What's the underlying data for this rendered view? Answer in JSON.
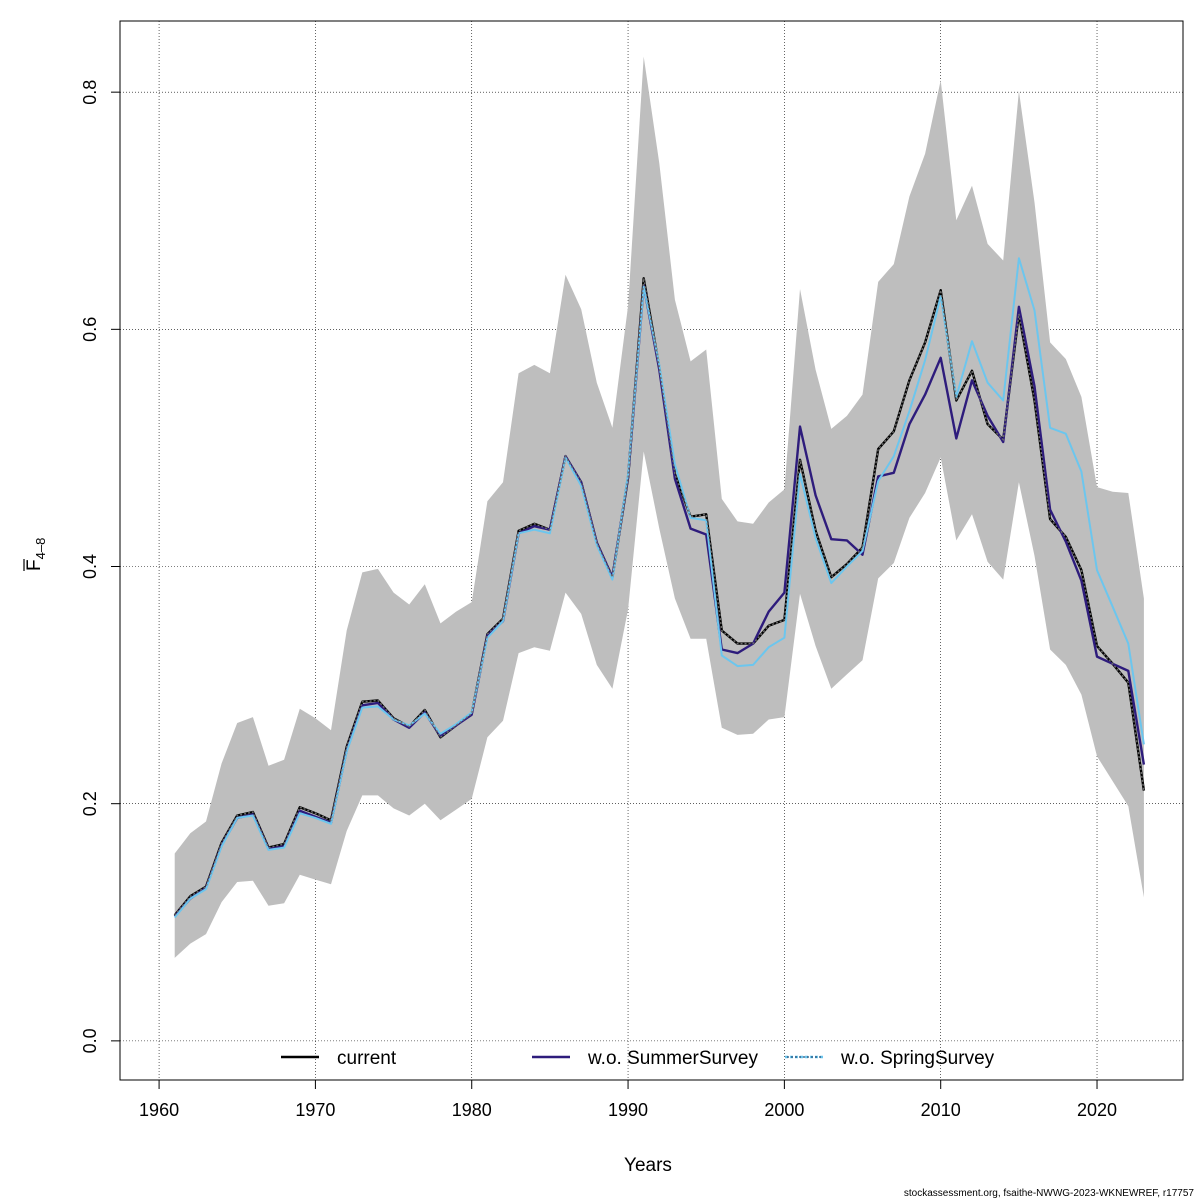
{
  "chart_data": {
    "type": "line",
    "title": "",
    "xlabel": "Years",
    "ylabel": "F",
    "ylabel_sub": "4–8",
    "xlim": [
      1957.5,
      2025.5
    ],
    "ylim": [
      -0.033,
      0.86
    ],
    "x_ticks": [
      1960,
      1970,
      1980,
      1990,
      2000,
      2010,
      2020
    ],
    "y_ticks": [
      0.0,
      0.2,
      0.4,
      0.6,
      0.8
    ],
    "y_tick_labels": [
      "0.0",
      "0.2",
      "0.4",
      "0.6",
      "0.8"
    ],
    "grid": true,
    "legend_position": "bottom",
    "x": [
      1961,
      1962,
      1963,
      1964,
      1965,
      1966,
      1967,
      1968,
      1969,
      1970,
      1971,
      1972,
      1973,
      1974,
      1975,
      1976,
      1977,
      1978,
      1979,
      1980,
      1981,
      1982,
      1983,
      1984,
      1985,
      1986,
      1987,
      1988,
      1989,
      1990,
      1991,
      1992,
      1993,
      1994,
      1995,
      1996,
      1997,
      1998,
      1999,
      2000,
      2001,
      2002,
      2003,
      2004,
      2005,
      2006,
      2007,
      2008,
      2009,
      2010,
      2011,
      2012,
      2013,
      2014,
      2015,
      2016,
      2017,
      2018,
      2019,
      2020,
      2021,
      2022,
      2023
    ],
    "band": {
      "color": "#bebebe",
      "upper": [
        0.158,
        0.175,
        0.185,
        0.234,
        0.268,
        0.273,
        0.232,
        0.237,
        0.28,
        0.272,
        0.262,
        0.346,
        0.395,
        0.398,
        0.378,
        0.368,
        0.385,
        0.352,
        0.362,
        0.37,
        0.455,
        0.471,
        0.563,
        0.57,
        0.563,
        0.646,
        0.617,
        0.555,
        0.517,
        0.62,
        0.83,
        0.74,
        0.625,
        0.573,
        0.583,
        0.457,
        0.438,
        0.436,
        0.454,
        0.465,
        0.634,
        0.566,
        0.516,
        0.527,
        0.545,
        0.64,
        0.655,
        0.712,
        0.748,
        0.81,
        0.692,
        0.721,
        0.672,
        0.658,
        0.801,
        0.707,
        0.589,
        0.575,
        0.543,
        0.467,
        0.463,
        0.462,
        0.373
      ],
      "lower": [
        0.07,
        0.082,
        0.09,
        0.117,
        0.134,
        0.135,
        0.114,
        0.116,
        0.14,
        0.136,
        0.132,
        0.177,
        0.207,
        0.207,
        0.196,
        0.19,
        0.2,
        0.186,
        0.195,
        0.204,
        0.256,
        0.27,
        0.327,
        0.332,
        0.329,
        0.378,
        0.36,
        0.317,
        0.297,
        0.364,
        0.497,
        0.432,
        0.373,
        0.339,
        0.339,
        0.264,
        0.258,
        0.259,
        0.271,
        0.273,
        0.377,
        0.333,
        0.297,
        0.309,
        0.321,
        0.39,
        0.403,
        0.441,
        0.462,
        0.492,
        0.422,
        0.444,
        0.404,
        0.389,
        0.471,
        0.409,
        0.33,
        0.317,
        0.292,
        0.24,
        0.219,
        0.198,
        0.121
      ]
    },
    "series": [
      {
        "name": "current",
        "color": "#000000",
        "style": "solid",
        "values": [
          0.106,
          0.122,
          0.13,
          0.167,
          0.19,
          0.193,
          0.163,
          0.166,
          0.197,
          0.192,
          0.186,
          0.248,
          0.286,
          0.287,
          0.272,
          0.265,
          0.279,
          0.256,
          0.266,
          0.276,
          0.343,
          0.356,
          0.43,
          0.436,
          0.431,
          0.493,
          0.471,
          0.42,
          0.391,
          0.475,
          0.643,
          0.568,
          0.478,
          0.442,
          0.444,
          0.346,
          0.335,
          0.335,
          0.35,
          0.355,
          0.49,
          0.43,
          0.391,
          0.402,
          0.416,
          0.499,
          0.514,
          0.557,
          0.589,
          0.633,
          0.54,
          0.565,
          0.52,
          0.507,
          0.613,
          0.54,
          0.44,
          0.425,
          0.397,
          0.333,
          0.318,
          0.302,
          0.211
        ]
      },
      {
        "name": "w.o. SummerSurvey",
        "color": "#2e1c7c",
        "style": "solid",
        "values": [
          0.105,
          0.12,
          0.129,
          0.165,
          0.188,
          0.191,
          0.162,
          0.164,
          0.194,
          0.189,
          0.184,
          0.245,
          0.283,
          0.285,
          0.271,
          0.264,
          0.277,
          0.257,
          0.266,
          0.275,
          0.342,
          0.354,
          0.428,
          0.434,
          0.431,
          0.493,
          0.471,
          0.42,
          0.391,
          0.476,
          0.637,
          0.566,
          0.474,
          0.432,
          0.427,
          0.33,
          0.327,
          0.335,
          0.362,
          0.378,
          0.518,
          0.46,
          0.423,
          0.422,
          0.41,
          0.476,
          0.479,
          0.52,
          0.545,
          0.576,
          0.508,
          0.557,
          0.527,
          0.505,
          0.619,
          0.552,
          0.448,
          0.421,
          0.388,
          0.324,
          0.318,
          0.312,
          0.233
        ]
      },
      {
        "name": "w.o. SpringSurvey",
        "color": "#6cc6ee",
        "style": "dotted",
        "values": [
          0.104,
          0.12,
          0.128,
          0.164,
          0.188,
          0.19,
          0.161,
          0.163,
          0.192,
          0.188,
          0.183,
          0.244,
          0.281,
          0.282,
          0.271,
          0.266,
          0.276,
          0.259,
          0.267,
          0.277,
          0.34,
          0.354,
          0.428,
          0.431,
          0.428,
          0.492,
          0.468,
          0.418,
          0.389,
          0.478,
          0.636,
          0.57,
          0.486,
          0.441,
          0.439,
          0.325,
          0.316,
          0.317,
          0.332,
          0.34,
          0.478,
          0.424,
          0.386,
          0.4,
          0.413,
          0.472,
          0.493,
          0.531,
          0.574,
          0.628,
          0.543,
          0.59,
          0.555,
          0.54,
          0.66,
          0.616,
          0.517,
          0.512,
          0.48,
          0.397,
          0.366,
          0.335,
          0.25
        ]
      }
    ],
    "footer": "stockassessment.org, fsaithe-NWWG-2023-WKNEWREF, r17757"
  }
}
